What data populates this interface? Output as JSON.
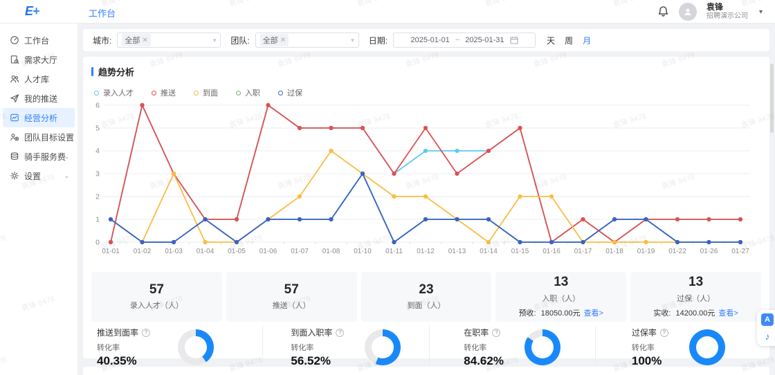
{
  "watermark": {
    "text": "袁锋 9478"
  },
  "topbar": {
    "logo": "E+",
    "nav_label": "工作台",
    "user": {
      "name": "袁锋",
      "company": "招聘演示公司"
    }
  },
  "sidebar": {
    "items": [
      {
        "label": "工作台",
        "icon": "dashboard-icon",
        "active": false,
        "chevron": false
      },
      {
        "label": "需求大厅",
        "icon": "demand-hall-icon",
        "active": false,
        "chevron": false
      },
      {
        "label": "人才库",
        "icon": "talent-pool-icon",
        "active": false,
        "chevron": false
      },
      {
        "label": "我的推送",
        "icon": "send-icon",
        "active": false,
        "chevron": false
      },
      {
        "label": "经营分析",
        "icon": "analysis-icon",
        "active": true,
        "chevron": false
      },
      {
        "label": "团队目标设置",
        "icon": "team-target-icon",
        "active": false,
        "chevron": false
      },
      {
        "label": "骑手服务费",
        "icon": "service-fee-icon",
        "active": false,
        "chevron": true
      },
      {
        "label": "设置",
        "icon": "settings-icon",
        "active": false,
        "chevron": true
      }
    ]
  },
  "filters": {
    "city_label": "城市:",
    "city_value": "全部",
    "team_label": "团队:",
    "team_value": "全部",
    "date_label": "日期:",
    "date_start": "2025-01-01",
    "date_separator": "~",
    "date_end": "2025-01-31",
    "granularity": [
      {
        "label": "天",
        "active": false
      },
      {
        "label": "周",
        "active": false
      },
      {
        "label": "月",
        "active": true
      }
    ]
  },
  "section_title": "趋势分析",
  "chart_data": {
    "type": "line",
    "title": "趋势分析",
    "x": [
      "01-01",
      "01-02",
      "01-03",
      "01-04",
      "01-05",
      "01-06",
      "01-07",
      "01-08",
      "01-10",
      "01-11",
      "01-12",
      "01-13",
      "01-14",
      "01-15",
      "01-16",
      "01-17",
      "01-18",
      "01-19",
      "01-22",
      "01-26",
      "01-27"
    ],
    "series": [
      {
        "name": "录入人才",
        "color": "#5ecaef",
        "values": [
          0,
          6,
          3,
          1,
          1,
          6,
          5,
          5,
          5,
          3,
          4,
          4,
          4,
          5,
          0,
          1,
          0,
          1,
          1,
          1,
          1
        ]
      },
      {
        "name": "推送",
        "color": "#e0504e",
        "values": [
          0,
          6,
          3,
          1,
          1,
          6,
          5,
          5,
          5,
          3,
          5,
          3,
          4,
          5,
          0,
          1,
          0,
          1,
          1,
          1,
          1
        ]
      },
      {
        "name": "到面",
        "color": "#f9bd40",
        "values": [
          1,
          0,
          3,
          0,
          0,
          1,
          2,
          4,
          3,
          2,
          2,
          1,
          0,
          2,
          2,
          0,
          0,
          0,
          0,
          0,
          0
        ]
      },
      {
        "name": "入职",
        "color": "#6abf5e",
        "values": [
          1,
          0,
          0,
          1,
          0,
          1,
          1,
          1,
          3,
          0,
          1,
          1,
          1,
          0,
          0,
          0,
          1,
          1,
          0,
          0,
          0
        ]
      },
      {
        "name": "过保",
        "color": "#3a62c6",
        "values": [
          1,
          0,
          0,
          1,
          0,
          1,
          1,
          1,
          3,
          0,
          1,
          1,
          1,
          0,
          0,
          0,
          1,
          1,
          0,
          0,
          0
        ]
      }
    ],
    "ylim": [
      0,
      6
    ],
    "yticks": [
      0,
      1,
      2,
      3,
      4,
      5,
      6
    ],
    "grid": true,
    "legend_position": "top"
  },
  "stats": [
    {
      "value": "57",
      "label": "录入人才（人）"
    },
    {
      "value": "57",
      "label": "推送（人）"
    },
    {
      "value": "23",
      "label": "到面（人）"
    },
    {
      "value": "13",
      "label": "入职（人）",
      "extra_label": "预收:",
      "extra_value": "18050.00元",
      "link": "查看>"
    },
    {
      "value": "13",
      "label": "过保（人）",
      "extra_label": "实收:",
      "extra_value": "14200.00元",
      "link": "查看>"
    }
  ],
  "rates": [
    {
      "title": "推送到面率",
      "sub": "转化率",
      "value": "40.35%",
      "percent": 40.35
    },
    {
      "title": "到面入职率",
      "sub": "转化率",
      "value": "56.52%",
      "percent": 56.52
    },
    {
      "title": "在职率",
      "sub": "转化率",
      "value": "84.62%",
      "percent": 84.62
    },
    {
      "title": "过保率",
      "sub": "转化率",
      "value": "100%",
      "percent": 100
    }
  ],
  "float_tools": {
    "translate_label": "A",
    "assist_label": "♪"
  },
  "colors": {
    "accent": "#337eff",
    "donut": "#1989fa",
    "donut_track": "#e9e9eb",
    "grid_line": "#ebeef2"
  }
}
